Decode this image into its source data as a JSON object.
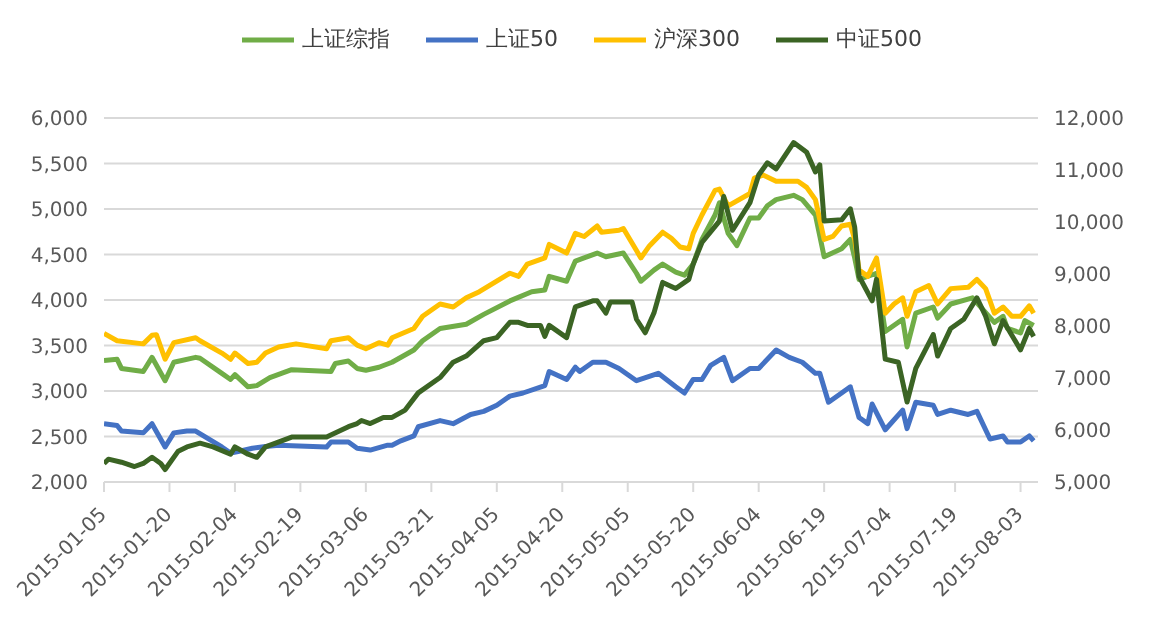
{
  "chart_data": {
    "type": "line",
    "xlim": [
      "2015-01-05",
      "2015-08-07"
    ],
    "xticks": [
      "2015-01-05",
      "2015-01-20",
      "2015-02-04",
      "2015-02-19",
      "2015-03-06",
      "2015-03-21",
      "2015-04-05",
      "2015-04-20",
      "2015-05-05",
      "2015-05-20",
      "2015-06-04",
      "2015-06-19",
      "2015-07-04",
      "2015-07-19",
      "2015-08-03"
    ],
    "ylim": [
      2000,
      6000
    ],
    "yticks": [
      {
        "value": 2000,
        "label": "2,000"
      },
      {
        "value": 2500,
        "label": "2,500"
      },
      {
        "value": 3000,
        "label": "3,000"
      },
      {
        "value": 3500,
        "label": "3,500"
      },
      {
        "value": 4000,
        "label": "4,000"
      },
      {
        "value": 4500,
        "label": "4,500"
      },
      {
        "value": 5000,
        "label": "5,000"
      },
      {
        "value": 5500,
        "label": "5,500"
      },
      {
        "value": 6000,
        "label": "6,000"
      }
    ],
    "y2lim": [
      5000,
      12000
    ],
    "y2ticks": [
      {
        "value": 5000,
        "label": "5,000"
      },
      {
        "value": 6000,
        "label": "6,000"
      },
      {
        "value": 7000,
        "label": "7,000"
      },
      {
        "value": 8000,
        "label": "8,000"
      },
      {
        "value": 9000,
        "label": "9,000"
      },
      {
        "value": 10000,
        "label": "10,000"
      },
      {
        "value": 11000,
        "label": "11,000"
      },
      {
        "value": 12000,
        "label": "12,000"
      }
    ],
    "grid": "y",
    "legend": "top",
    "marker": "none",
    "line_style": "solid",
    "series": [
      {
        "name": "上证综指",
        "color": "#70ad47",
        "x": [
          "2015-01-05",
          "2015-01-08",
          "2015-01-09",
          "2015-01-14",
          "2015-01-16",
          "2015-01-19",
          "2015-01-21",
          "2015-01-26",
          "2015-01-27",
          "2015-02-01",
          "2015-02-03",
          "2015-02-04",
          "2015-02-07",
          "2015-02-09",
          "2015-02-12",
          "2015-02-17",
          "2015-02-26",
          "2015-02-27",
          "2015-03-02",
          "2015-03-04",
          "2015-03-06",
          "2015-03-09",
          "2015-03-12",
          "2015-03-17",
          "2015-03-19",
          "2015-03-23",
          "2015-03-29",
          "2015-04-02",
          "2015-04-08",
          "2015-04-13",
          "2015-04-16",
          "2015-04-17",
          "2015-04-21",
          "2015-04-23",
          "2015-04-25",
          "2015-04-28",
          "2015-04-30",
          "2015-05-04",
          "2015-05-07",
          "2015-05-08",
          "2015-05-11",
          "2015-05-13",
          "2015-05-16",
          "2015-05-18",
          "2015-05-20",
          "2015-05-22",
          "2015-05-25",
          "2015-05-26",
          "2015-05-28",
          "2015-05-30",
          "2015-06-02",
          "2015-06-04",
          "2015-06-06",
          "2015-06-08",
          "2015-06-12",
          "2015-06-14",
          "2015-06-17",
          "2015-06-19",
          "2015-06-23",
          "2015-06-25",
          "2015-06-26",
          "2015-06-27",
          "2015-07-01",
          "2015-07-03",
          "2015-07-07",
          "2015-07-08",
          "2015-07-10",
          "2015-07-14",
          "2015-07-15",
          "2015-07-18",
          "2015-07-23",
          "2015-07-28",
          "2015-07-30",
          "2015-07-31",
          "2015-08-03",
          "2015-08-04",
          "2015-08-06"
        ],
        "values": [
          3336,
          3349,
          3248,
          3214,
          3370,
          3113,
          3316,
          3370,
          3360,
          3194,
          3127,
          3180,
          3046,
          3059,
          3147,
          3234,
          3214,
          3302,
          3329,
          3248,
          3228,
          3261,
          3316,
          3450,
          3552,
          3687,
          3734,
          3842,
          3990,
          4091,
          4111,
          4260,
          4206,
          4428,
          4462,
          4516,
          4476,
          4516,
          4294,
          4206,
          4328,
          4395,
          4307,
          4273,
          4395,
          4665,
          4934,
          5069,
          4732,
          4597,
          4901,
          4901,
          5035,
          5103,
          5150,
          5103,
          4934,
          4476,
          4563,
          4665,
          4462,
          4226,
          4294,
          3653,
          3788,
          3484,
          3855,
          3923,
          3801,
          3956,
          4024,
          3754,
          3821,
          3687,
          3639,
          3774,
          3720
        ]
      },
      {
        "name": "上证50",
        "color": "#4472c4",
        "x": [
          "2015-01-05",
          "2015-01-08",
          "2015-01-09",
          "2015-01-14",
          "2015-01-16",
          "2015-01-19",
          "2015-01-21",
          "2015-01-24",
          "2015-01-26",
          "2015-02-01",
          "2015-02-03",
          "2015-02-05",
          "2015-02-08",
          "2015-02-11",
          "2015-02-14",
          "2015-02-25",
          "2015-02-26",
          "2015-03-02",
          "2015-03-04",
          "2015-03-07",
          "2015-03-11",
          "2015-03-12",
          "2015-03-14",
          "2015-03-17",
          "2015-03-18",
          "2015-03-23",
          "2015-03-26",
          "2015-03-30",
          "2015-04-02",
          "2015-04-05",
          "2015-04-08",
          "2015-04-11",
          "2015-04-16",
          "2015-04-17",
          "2015-04-21",
          "2015-04-23",
          "2015-04-24",
          "2015-04-27",
          "2015-04-30",
          "2015-05-03",
          "2015-05-07",
          "2015-05-12",
          "2015-05-16",
          "2015-05-18",
          "2015-05-20",
          "2015-05-22",
          "2015-05-24",
          "2015-05-27",
          "2015-05-29",
          "2015-06-02",
          "2015-06-04",
          "2015-06-08",
          "2015-06-11",
          "2015-06-14",
          "2015-06-17",
          "2015-06-18",
          "2015-06-20",
          "2015-06-23",
          "2015-06-25",
          "2015-06-27",
          "2015-06-29",
          "2015-06-30",
          "2015-07-03",
          "2015-07-07",
          "2015-07-08",
          "2015-07-10",
          "2015-07-14",
          "2015-07-15",
          "2015-07-18",
          "2015-07-22",
          "2015-07-24",
          "2015-07-27",
          "2015-07-30",
          "2015-07-31",
          "2015-08-03",
          "2015-08-05",
          "2015-08-06"
        ],
        "values": [
          2641,
          2621,
          2560,
          2540,
          2641,
          2385,
          2540,
          2560,
          2560,
          2385,
          2317,
          2338,
          2371,
          2391,
          2405,
          2385,
          2439,
          2439,
          2371,
          2351,
          2405,
          2405,
          2452,
          2506,
          2607,
          2675,
          2641,
          2742,
          2776,
          2843,
          2944,
          2978,
          3059,
          3214,
          3127,
          3262,
          3214,
          3316,
          3316,
          3248,
          3113,
          3194,
          3046,
          2978,
          3127,
          3127,
          3282,
          3370,
          3113,
          3248,
          3248,
          3450,
          3370,
          3316,
          3194,
          3194,
          2877,
          2978,
          3046,
          2708,
          2641,
          2857,
          2574,
          2789,
          2587,
          2877,
          2843,
          2742,
          2789,
          2742,
          2776,
          2472,
          2506,
          2439,
          2439,
          2506,
          2452
        ]
      },
      {
        "name": "沪深300",
        "color": "#ffc000",
        "x": [
          "2015-01-05",
          "2015-01-08",
          "2015-01-14",
          "2015-01-16",
          "2015-01-17",
          "2015-01-19",
          "2015-01-21",
          "2015-01-26",
          "2015-01-27",
          "2015-02-01",
          "2015-02-03",
          "2015-02-04",
          "2015-02-07",
          "2015-02-09",
          "2015-02-11",
          "2015-02-14",
          "2015-02-18",
          "2015-02-25",
          "2015-02-26",
          "2015-03-02",
          "2015-03-04",
          "2015-03-06",
          "2015-03-09",
          "2015-03-11",
          "2015-03-12",
          "2015-03-17",
          "2015-03-19",
          "2015-03-23",
          "2015-03-26",
          "2015-03-29",
          "2015-04-01",
          "2015-04-08",
          "2015-04-10",
          "2015-04-12",
          "2015-04-16",
          "2015-04-17",
          "2015-04-21",
          "2015-04-23",
          "2015-04-25",
          "2015-04-28",
          "2015-04-29",
          "2015-05-03",
          "2015-05-04",
          "2015-05-07",
          "2015-05-08",
          "2015-05-10",
          "2015-05-13",
          "2015-05-15",
          "2015-05-17",
          "2015-05-19",
          "2015-05-20",
          "2015-05-22",
          "2015-05-25",
          "2015-05-26",
          "2015-05-28",
          "2015-06-02",
          "2015-06-03",
          "2015-06-05",
          "2015-06-08",
          "2015-06-13",
          "2015-06-15",
          "2015-06-17",
          "2015-06-19",
          "2015-06-21",
          "2015-06-23",
          "2015-06-25",
          "2015-06-26",
          "2015-06-27",
          "2015-06-29",
          "2015-07-01",
          "2015-07-03",
          "2015-07-05",
          "2015-07-07",
          "2015-07-08",
          "2015-07-10",
          "2015-07-13",
          "2015-07-15",
          "2015-07-18",
          "2015-07-22",
          "2015-07-24",
          "2015-07-26",
          "2015-07-28",
          "2015-07-30",
          "2015-08-01",
          "2015-08-03",
          "2015-08-05",
          "2015-08-06"
        ],
        "values": [
          3632,
          3552,
          3518,
          3612,
          3619,
          3349,
          3531,
          3585,
          3552,
          3417,
          3349,
          3417,
          3302,
          3316,
          3417,
          3484,
          3518,
          3464,
          3552,
          3585,
          3504,
          3464,
          3531,
          3504,
          3585,
          3687,
          3821,
          3956,
          3923,
          4024,
          4091,
          4294,
          4260,
          4395,
          4462,
          4611,
          4516,
          4732,
          4698,
          4813,
          4745,
          4766,
          4786,
          4543,
          4462,
          4597,
          4745,
          4678,
          4583,
          4563,
          4732,
          4934,
          5204,
          5218,
          5035,
          5170,
          5339,
          5373,
          5305,
          5305,
          5238,
          5103,
          4665,
          4698,
          4813,
          4833,
          4665,
          4328,
          4260,
          4462,
          3855,
          3956,
          4024,
          3821,
          4091,
          4159,
          3956,
          4125,
          4139,
          4226,
          4125,
          3855,
          3923,
          3821,
          3821,
          3936,
          3855
        ]
      },
      {
        "name": "中证500",
        "color": "#3b6424",
        "axis": "y2",
        "x": [
          "2015-01-05",
          "2015-01-06",
          "2015-01-09",
          "2015-01-12",
          "2015-01-14",
          "2015-01-16",
          "2015-01-18",
          "2015-01-19",
          "2015-01-22",
          "2015-01-24",
          "2015-01-27",
          "2015-01-30",
          "2015-02-03",
          "2015-02-04",
          "2015-02-07",
          "2015-02-09",
          "2015-02-11",
          "2015-02-17",
          "2015-02-25",
          "2015-03-02",
          "2015-03-04",
          "2015-03-05",
          "2015-03-07",
          "2015-03-10",
          "2015-03-12",
          "2015-03-15",
          "2015-03-18",
          "2015-03-23",
          "2015-03-26",
          "2015-03-29",
          "2015-04-02",
          "2015-04-05",
          "2015-04-08",
          "2015-04-10",
          "2015-04-12",
          "2015-04-15",
          "2015-04-16",
          "2015-04-17",
          "2015-04-21",
          "2015-04-23",
          "2015-04-27",
          "2015-04-28",
          "2015-04-30",
          "2015-05-01",
          "2015-05-06",
          "2015-05-07",
          "2015-05-09",
          "2015-05-11",
          "2015-05-13",
          "2015-05-16",
          "2015-05-19",
          "2015-05-20",
          "2015-05-22",
          "2015-05-26",
          "2015-05-27",
          "2015-05-29",
          "2015-06-02",
          "2015-06-04",
          "2015-06-06",
          "2015-06-08",
          "2015-06-12",
          "2015-06-15",
          "2015-06-17",
          "2015-06-18",
          "2015-06-19",
          "2015-06-23",
          "2015-06-25",
          "2015-06-26",
          "2015-06-27",
          "2015-06-30",
          "2015-07-01",
          "2015-07-03",
          "2015-07-06",
          "2015-07-08",
          "2015-07-10",
          "2015-07-14",
          "2015-07-15",
          "2015-07-18",
          "2015-07-21",
          "2015-07-24",
          "2015-07-26",
          "2015-07-28",
          "2015-07-30",
          "2015-08-03",
          "2015-08-05",
          "2015-08-06"
        ],
        "values": [
          5357,
          5439,
          5380,
          5298,
          5357,
          5475,
          5357,
          5239,
          5593,
          5675,
          5746,
          5675,
          5534,
          5675,
          5534,
          5475,
          5675,
          5864,
          5864,
          6064,
          6124,
          6183,
          6124,
          6242,
          6242,
          6383,
          6714,
          7009,
          7304,
          7422,
          7717,
          7776,
          8071,
          8071,
          8012,
          8012,
          7799,
          8012,
          7776,
          8366,
          8484,
          8484,
          8248,
          8460,
          8460,
          8130,
          7870,
          8248,
          8838,
          8720,
          8897,
          9192,
          9605,
          10018,
          10490,
          9841,
          10372,
          10903,
          11138,
          11021,
          11528,
          11339,
          10962,
          11100,
          10018,
          10041,
          10254,
          9900,
          8956,
          8484,
          8897,
          7363,
          7304,
          6537,
          7186,
          7835,
          7422,
          7953,
          8130,
          8543,
          8189,
          7658,
          8106,
          7540,
          7953,
          7799
        ]
      }
    ]
  }
}
